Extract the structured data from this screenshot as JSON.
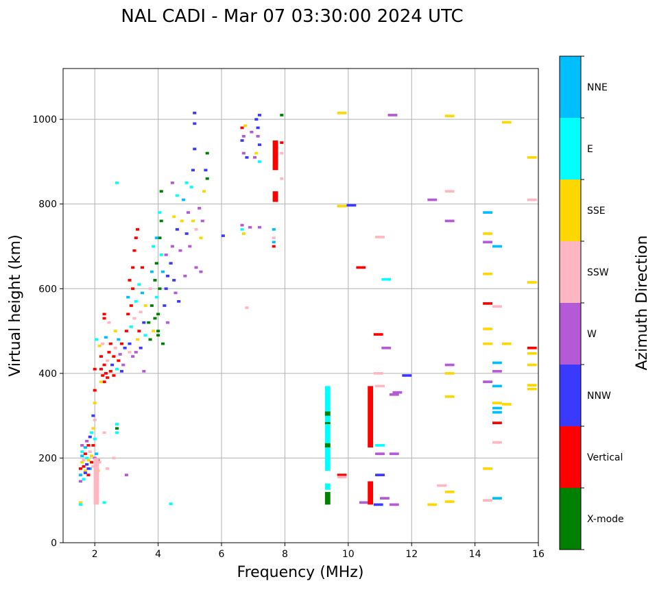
{
  "chart_data": {
    "type": "scatter",
    "title": "NAL CADI - Mar 07 03:30:00 2024 UTC",
    "xlabel": "Frequency (MHz)",
    "ylabel": "Virtual height (km)",
    "xlim": [
      1,
      16
    ],
    "ylim": [
      0,
      1120
    ],
    "xticks": [
      2,
      4,
      6,
      8,
      10,
      12,
      14,
      16
    ],
    "yticks": [
      0,
      200,
      400,
      600,
      800,
      1000
    ],
    "grid": true,
    "colorbar": {
      "label": "Azimuth Direction",
      "categories": [
        "X-mode",
        "Vertical",
        "NNW",
        "W",
        "SSW",
        "SSE",
        "E",
        "NNE"
      ],
      "colors": [
        "#008000",
        "#ff0000",
        "#3a3aff",
        "#b45ad6",
        "#ffb6c1",
        "#ffd700",
        "#00ffff",
        "#00bfff"
      ]
    },
    "points_format": "[frequency_MHz, height_km, category_index]",
    "points": [
      [
        1.55,
        145,
        3
      ],
      [
        1.55,
        160,
        7
      ],
      [
        1.55,
        175,
        1
      ],
      [
        1.6,
        190,
        5
      ],
      [
        1.6,
        205,
        7
      ],
      [
        1.6,
        215,
        6
      ],
      [
        1.65,
        180,
        1
      ],
      [
        1.65,
        195,
        4
      ],
      [
        1.7,
        170,
        5
      ],
      [
        1.7,
        210,
        1
      ],
      [
        1.7,
        225,
        7
      ],
      [
        1.75,
        185,
        2
      ],
      [
        1.75,
        200,
        6
      ],
      [
        1.75,
        240,
        3
      ],
      [
        1.8,
        160,
        1
      ],
      [
        1.8,
        195,
        5
      ],
      [
        1.8,
        230,
        1
      ],
      [
        1.85,
        175,
        7
      ],
      [
        1.85,
        215,
        4
      ],
      [
        1.85,
        250,
        2
      ],
      [
        1.9,
        190,
        1
      ],
      [
        1.9,
        205,
        5
      ],
      [
        1.9,
        260,
        6
      ],
      [
        1.95,
        180,
        4
      ],
      [
        1.95,
        230,
        1
      ],
      [
        1.95,
        270,
        5
      ],
      [
        2.0,
        200,
        3
      ],
      [
        2.0,
        245,
        6
      ],
      [
        2.0,
        290,
        4
      ],
      [
        2.0,
        330,
        5
      ],
      [
        2.0,
        360,
        1
      ],
      [
        1.7,
        165,
        2
      ],
      [
        1.6,
        230,
        3
      ],
      [
        1.65,
        150,
        6
      ],
      [
        1.8,
        175,
        2
      ],
      [
        2.05,
        210,
        7
      ],
      [
        2.1,
        195,
        1
      ],
      [
        2.15,
        190,
        4
      ],
      [
        2.1,
        170,
        5
      ],
      [
        1.55,
        95,
        5
      ],
      [
        1.55,
        90,
        6
      ],
      [
        2.3,
        95,
        6
      ],
      [
        2.3,
        260,
        4
      ],
      [
        2.7,
        270,
        0
      ],
      [
        2.7,
        260,
        6
      ],
      [
        2.7,
        280,
        6
      ],
      [
        3.0,
        160,
        3
      ],
      [
        2.4,
        175,
        4
      ],
      [
        2.6,
        200,
        4
      ],
      [
        1.95,
        300,
        2
      ],
      [
        2.0,
        410,
        1
      ],
      [
        2.05,
        480,
        6
      ],
      [
        2.15,
        465,
        5
      ],
      [
        2.2,
        440,
        1
      ],
      [
        2.2,
        410,
        1
      ],
      [
        2.25,
        395,
        1
      ],
      [
        2.25,
        470,
        4
      ],
      [
        2.3,
        420,
        1
      ],
      [
        2.3,
        380,
        1
      ],
      [
        2.35,
        400,
        1
      ],
      [
        2.35,
        485,
        7
      ],
      [
        2.4,
        430,
        4
      ],
      [
        2.4,
        390,
        1
      ],
      [
        2.45,
        450,
        1
      ],
      [
        2.5,
        405,
        1
      ],
      [
        2.5,
        470,
        1
      ],
      [
        2.55,
        420,
        2
      ],
      [
        2.6,
        440,
        1
      ],
      [
        2.6,
        395,
        1
      ],
      [
        2.65,
        460,
        4
      ],
      [
        2.7,
        410,
        6
      ],
      [
        2.75,
        430,
        1
      ],
      [
        2.8,
        445,
        3
      ],
      [
        2.85,
        405,
        2
      ],
      [
        2.85,
        470,
        1
      ],
      [
        2.9,
        420,
        3
      ],
      [
        2.95,
        460,
        2
      ],
      [
        2.3,
        530,
        1
      ],
      [
        2.3,
        540,
        1
      ],
      [
        2.45,
        520,
        4
      ],
      [
        2.75,
        480,
        7
      ],
      [
        2.65,
        500,
        5
      ],
      [
        2.2,
        380,
        5
      ],
      [
        3.0,
        500,
        1
      ],
      [
        3.05,
        540,
        1
      ],
      [
        3.05,
        580,
        7
      ],
      [
        3.1,
        620,
        1
      ],
      [
        3.1,
        470,
        2
      ],
      [
        3.15,
        560,
        1
      ],
      [
        3.15,
        510,
        6
      ],
      [
        3.2,
        600,
        1
      ],
      [
        3.2,
        650,
        1
      ],
      [
        3.25,
        690,
        1
      ],
      [
        3.25,
        530,
        4
      ],
      [
        3.3,
        720,
        1
      ],
      [
        3.3,
        570,
        6
      ],
      [
        3.35,
        740,
        1
      ],
      [
        3.35,
        480,
        5
      ],
      [
        3.4,
        610,
        6
      ],
      [
        3.4,
        500,
        1
      ],
      [
        3.45,
        545,
        4
      ],
      [
        3.5,
        590,
        7
      ],
      [
        3.5,
        650,
        1
      ],
      [
        3.55,
        520,
        2
      ],
      [
        3.6,
        490,
        6
      ],
      [
        3.3,
        450,
        3
      ],
      [
        3.45,
        460,
        2
      ],
      [
        3.2,
        440,
        3
      ],
      [
        3.6,
        560,
        5
      ],
      [
        3.1,
        450,
        4
      ],
      [
        3.55,
        405,
        3
      ],
      [
        3.7,
        520,
        0
      ],
      [
        3.75,
        480,
        0
      ],
      [
        3.75,
        600,
        4
      ],
      [
        3.8,
        560,
        0
      ],
      [
        3.8,
        640,
        7
      ],
      [
        3.85,
        500,
        5
      ],
      [
        3.85,
        700,
        6
      ],
      [
        3.9,
        530,
        0
      ],
      [
        3.9,
        620,
        0
      ],
      [
        3.95,
        580,
        6
      ],
      [
        3.95,
        660,
        0
      ],
      [
        4.0,
        490,
        0
      ],
      [
        4.0,
        540,
        0
      ],
      [
        4.05,
        600,
        0
      ],
      [
        4.05,
        720,
        0
      ],
      [
        4.1,
        830,
        0
      ],
      [
        4.1,
        680,
        6
      ],
      [
        4.1,
        760,
        0
      ],
      [
        4.15,
        640,
        7
      ],
      [
        4.2,
        560,
        2
      ],
      [
        4.25,
        600,
        2
      ],
      [
        4.3,
        630,
        2
      ],
      [
        4.3,
        520,
        3
      ],
      [
        4.25,
        680,
        3
      ],
      [
        4.15,
        470,
        0
      ],
      [
        4.05,
        780,
        6
      ],
      [
        3.95,
        720,
        7
      ],
      [
        4.0,
        500,
        0
      ],
      [
        4.4,
        660,
        2
      ],
      [
        4.45,
        700,
        3
      ],
      [
        4.5,
        620,
        2
      ],
      [
        4.5,
        770,
        5
      ],
      [
        4.55,
        590,
        3
      ],
      [
        4.6,
        740,
        2
      ],
      [
        4.6,
        820,
        6
      ],
      [
        4.7,
        690,
        3
      ],
      [
        4.75,
        760,
        5
      ],
      [
        4.8,
        810,
        7
      ],
      [
        4.85,
        630,
        3
      ],
      [
        4.9,
        730,
        2
      ],
      [
        4.9,
        850,
        6
      ],
      [
        4.95,
        780,
        3
      ],
      [
        5.0,
        700,
        3
      ],
      [
        5.05,
        840,
        6
      ],
      [
        5.1,
        760,
        5
      ],
      [
        5.1,
        880,
        2
      ],
      [
        5.15,
        930,
        2
      ],
      [
        5.15,
        990,
        2
      ],
      [
        5.15,
        1015,
        2
      ],
      [
        5.2,
        740,
        4
      ],
      [
        5.3,
        790,
        3
      ],
      [
        5.35,
        720,
        5
      ],
      [
        5.4,
        760,
        3
      ],
      [
        5.45,
        830,
        5
      ],
      [
        5.5,
        880,
        2
      ],
      [
        5.55,
        920,
        0
      ],
      [
        5.55,
        860,
        0
      ],
      [
        5.35,
        640,
        3
      ],
      [
        4.65,
        570,
        2
      ],
      [
        5.2,
        650,
        3
      ],
      [
        6.05,
        725,
        2
      ],
      [
        4.45,
        850,
        3
      ],
      [
        2.7,
        850,
        6
      ],
      [
        4.4,
        92,
        6
      ],
      [
        6.8,
        555,
        4
      ],
      [
        6.65,
        980,
        1
      ],
      [
        6.65,
        950,
        2
      ],
      [
        6.7,
        960,
        3
      ],
      [
        6.7,
        920,
        3
      ],
      [
        6.75,
        985,
        5
      ],
      [
        6.8,
        910,
        2
      ],
      [
        6.95,
        970,
        3
      ],
      [
        7.1,
        1000,
        2
      ],
      [
        7.15,
        980,
        2
      ],
      [
        7.15,
        960,
        3
      ],
      [
        7.2,
        1010,
        2
      ],
      [
        7.2,
        940,
        2
      ],
      [
        7.1,
        920,
        5
      ],
      [
        7.2,
        900,
        6
      ],
      [
        7.05,
        910,
        3
      ],
      [
        7.9,
        1010,
        0
      ],
      [
        7.9,
        945,
        1
      ],
      [
        7.9,
        920,
        4
      ],
      [
        7.9,
        860,
        4
      ],
      [
        6.65,
        750,
        3
      ],
      [
        6.65,
        740,
        6
      ],
      [
        6.7,
        730,
        5
      ],
      [
        6.9,
        745,
        3
      ],
      [
        7.2,
        745,
        3
      ],
      [
        7.65,
        740,
        7
      ],
      [
        7.65,
        720,
        4
      ],
      [
        7.65,
        710,
        7
      ],
      [
        7.65,
        700,
        1
      ],
      [
        9.8,
        1015,
        5
      ],
      [
        9.8,
        795,
        5
      ],
      [
        10.1,
        797,
        2
      ],
      [
        10.4,
        650,
        1
      ],
      [
        9.8,
        160,
        1
      ],
      [
        9.8,
        155,
        4
      ],
      [
        11.0,
        722,
        4
      ],
      [
        11.2,
        622,
        6
      ],
      [
        10.95,
        492,
        1
      ],
      [
        11.2,
        460,
        3
      ],
      [
        10.95,
        400,
        4
      ],
      [
        11.0,
        370,
        4
      ],
      [
        11.45,
        350,
        3
      ],
      [
        11.55,
        355,
        3
      ],
      [
        11.85,
        395,
        2
      ],
      [
        11.0,
        230,
        6
      ],
      [
        11.0,
        210,
        3
      ],
      [
        11.45,
        210,
        3
      ],
      [
        11.0,
        160,
        2
      ],
      [
        11.15,
        105,
        3
      ],
      [
        11.45,
        90,
        3
      ],
      [
        10.95,
        90,
        2
      ],
      [
        10.5,
        95,
        3
      ],
      [
        11.4,
        1010,
        3
      ],
      [
        12.65,
        810,
        3
      ],
      [
        13.2,
        1008,
        5
      ],
      [
        13.2,
        830,
        4
      ],
      [
        13.2,
        760,
        3
      ],
      [
        13.2,
        420,
        3
      ],
      [
        13.2,
        400,
        5
      ],
      [
        13.2,
        345,
        5
      ],
      [
        13.2,
        120,
        5
      ],
      [
        13.2,
        97,
        5
      ],
      [
        12.95,
        135,
        4
      ],
      [
        12.65,
        90,
        5
      ],
      [
        14.4,
        780,
        7
      ],
      [
        14.4,
        730,
        5
      ],
      [
        14.4,
        710,
        3
      ],
      [
        14.4,
        635,
        5
      ],
      [
        14.4,
        565,
        1
      ],
      [
        14.4,
        505,
        5
      ],
      [
        14.4,
        470,
        5
      ],
      [
        14.4,
        380,
        3
      ],
      [
        14.4,
        175,
        5
      ],
      [
        14.4,
        100,
        4
      ],
      [
        14.7,
        700,
        7
      ],
      [
        14.7,
        558,
        4
      ],
      [
        14.7,
        425,
        7
      ],
      [
        14.7,
        405,
        3
      ],
      [
        14.7,
        370,
        7
      ],
      [
        14.7,
        330,
        5
      ],
      [
        14.7,
        318,
        7
      ],
      [
        14.7,
        308,
        7
      ],
      [
        14.7,
        283,
        1
      ],
      [
        14.7,
        237,
        4
      ],
      [
        14.7,
        105,
        7
      ],
      [
        15.0,
        470,
        5
      ],
      [
        15.0,
        327,
        5
      ],
      [
        15.0,
        993,
        5
      ],
      [
        15.8,
        910,
        5
      ],
      [
        15.8,
        810,
        4
      ],
      [
        15.8,
        615,
        5
      ],
      [
        15.8,
        460,
        1
      ],
      [
        15.8,
        447,
        5
      ],
      [
        15.8,
        420,
        5
      ],
      [
        15.8,
        372,
        5
      ],
      [
        15.8,
        363,
        5
      ]
    ],
    "bars_format": "[frequency_MHz, height_from_km, height_to_km, category_index]",
    "bars": [
      [
        2.05,
        90,
        200,
        4
      ],
      [
        7.7,
        880,
        950,
        1
      ],
      [
        7.7,
        805,
        830,
        1
      ],
      [
        9.35,
        90,
        120,
        0
      ],
      [
        9.35,
        125,
        140,
        6
      ],
      [
        9.35,
        170,
        370,
        6
      ],
      [
        9.35,
        225,
        235,
        0
      ],
      [
        9.35,
        300,
        310,
        0
      ],
      [
        9.35,
        280,
        285,
        0
      ],
      [
        10.7,
        225,
        370,
        1
      ],
      [
        10.7,
        90,
        145,
        1
      ]
    ]
  }
}
